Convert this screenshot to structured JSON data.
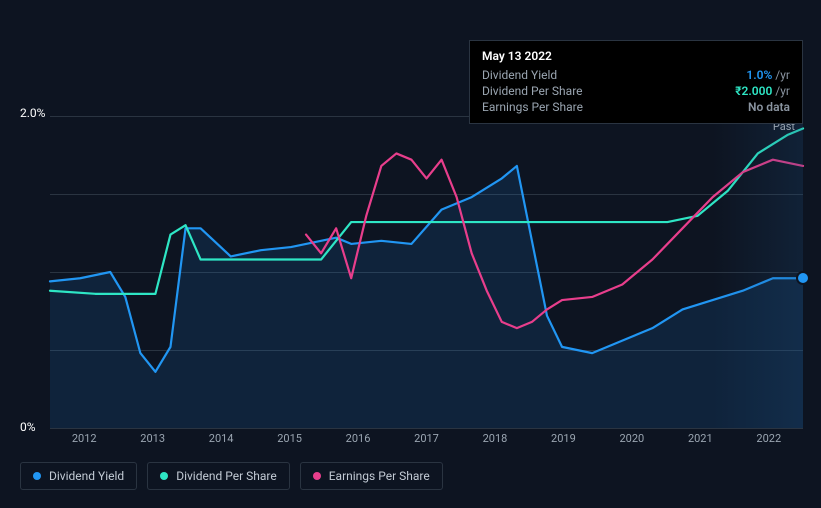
{
  "tooltip": {
    "date": "May 13 2022",
    "rows": [
      {
        "label": "Dividend Yield",
        "value": "1.0%",
        "unit": "/yr",
        "color": "#2196f3"
      },
      {
        "label": "Dividend Per Share",
        "value": "₹2.000",
        "unit": "/yr",
        "color": "#2ee6c5"
      },
      {
        "label": "Earnings Per Share",
        "value": "No data",
        "unit": "",
        "color": "#8a94a0"
      }
    ]
  },
  "chart": {
    "type": "line-area",
    "background_color": "#0d1421",
    "grid_color": "#2a3441",
    "ylim": [
      0,
      2.0
    ],
    "y_ticks": [
      {
        "pos": 0,
        "label": "2.0%"
      },
      {
        "pos": 100,
        "label": "0%"
      }
    ],
    "grid_positions": [
      0,
      25,
      50,
      75,
      100
    ],
    "x_years": [
      "2012",
      "2013",
      "2014",
      "2015",
      "2016",
      "2017",
      "2018",
      "2019",
      "2020",
      "2021",
      "2022"
    ],
    "past_label": "Past",
    "series": [
      {
        "id": "dividend-yield",
        "label": "Dividend Yield",
        "color": "#2196f3",
        "fill": "rgba(33,150,243,0.12)",
        "width": 2.2,
        "area": true,
        "points": [
          [
            0,
            53
          ],
          [
            4,
            52
          ],
          [
            8,
            50
          ],
          [
            10,
            58
          ],
          [
            12,
            76
          ],
          [
            14,
            82
          ],
          [
            16,
            74
          ],
          [
            18,
            36
          ],
          [
            20,
            36
          ],
          [
            24,
            45
          ],
          [
            28,
            43
          ],
          [
            32,
            42
          ],
          [
            36,
            40
          ],
          [
            38,
            39
          ],
          [
            40,
            41
          ],
          [
            44,
            40
          ],
          [
            48,
            41
          ],
          [
            52,
            30
          ],
          [
            56,
            26
          ],
          [
            60,
            20
          ],
          [
            62,
            16
          ],
          [
            64,
            40
          ],
          [
            66,
            64
          ],
          [
            68,
            74
          ],
          [
            72,
            76
          ],
          [
            76,
            72
          ],
          [
            80,
            68
          ],
          [
            84,
            62
          ],
          [
            88,
            59
          ],
          [
            92,
            56
          ],
          [
            96,
            52
          ],
          [
            100,
            52
          ]
        ]
      },
      {
        "id": "dividend-per-share",
        "label": "Dividend Per Share",
        "color": "#2ee6c5",
        "fill": "none",
        "width": 2.2,
        "area": false,
        "points": [
          [
            0,
            56
          ],
          [
            6,
            57
          ],
          [
            10,
            57
          ],
          [
            14,
            57
          ],
          [
            16,
            38
          ],
          [
            18,
            35
          ],
          [
            20,
            46
          ],
          [
            28,
            46
          ],
          [
            36,
            46
          ],
          [
            40,
            34
          ],
          [
            44,
            34
          ],
          [
            52,
            34
          ],
          [
            60,
            34
          ],
          [
            68,
            34
          ],
          [
            76,
            34
          ],
          [
            82,
            34
          ],
          [
            86,
            32
          ],
          [
            90,
            24
          ],
          [
            94,
            12
          ],
          [
            98,
            6
          ],
          [
            100,
            4
          ]
        ]
      },
      {
        "id": "earnings-per-share",
        "label": "Earnings Per Share",
        "color": "#e83e8c",
        "fill": "none",
        "width": 2.2,
        "area": false,
        "points": [
          [
            34,
            38
          ],
          [
            36,
            44
          ],
          [
            38,
            36
          ],
          [
            40,
            52
          ],
          [
            42,
            32
          ],
          [
            44,
            16
          ],
          [
            46,
            12
          ],
          [
            48,
            14
          ],
          [
            50,
            20
          ],
          [
            52,
            14
          ],
          [
            54,
            26
          ],
          [
            56,
            44
          ],
          [
            58,
            56
          ],
          [
            60,
            66
          ],
          [
            62,
            68
          ],
          [
            64,
            66
          ],
          [
            66,
            62
          ],
          [
            68,
            59
          ],
          [
            72,
            58
          ],
          [
            76,
            54
          ],
          [
            80,
            46
          ],
          [
            84,
            36
          ],
          [
            88,
            26
          ],
          [
            92,
            18
          ],
          [
            96,
            14
          ],
          [
            100,
            16
          ]
        ],
        "end_marker": {
          "x": 100,
          "y": 52,
          "color": "#2196f3"
        }
      }
    ]
  },
  "legend": [
    {
      "id": "dividend-yield",
      "label": "Dividend Yield",
      "color": "#2196f3"
    },
    {
      "id": "dividend-per-share",
      "label": "Dividend Per Share",
      "color": "#2ee6c5"
    },
    {
      "id": "earnings-per-share",
      "label": "Earnings Per Share",
      "color": "#e83e8c"
    }
  ]
}
